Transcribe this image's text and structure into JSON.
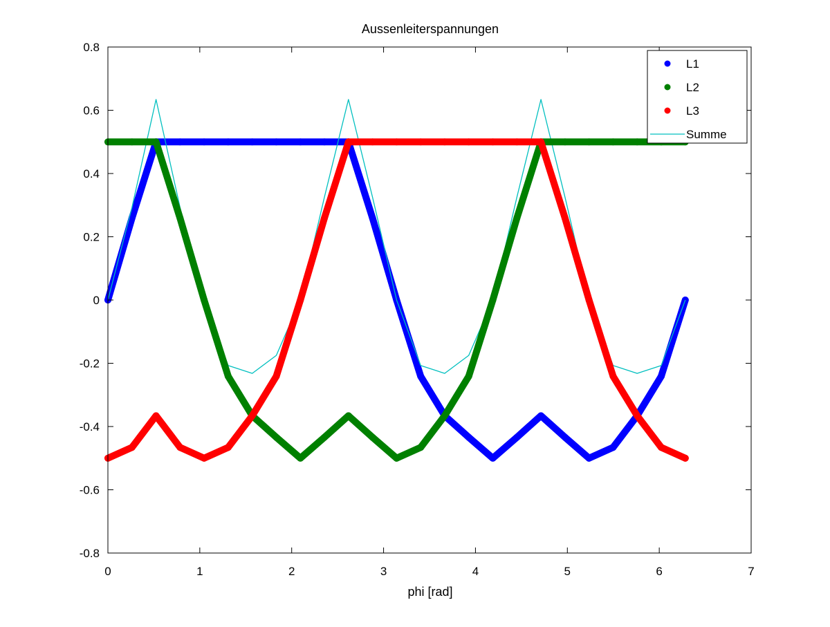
{
  "chart_data": {
    "type": "scatter",
    "title": "Aussenleiterspannungen",
    "xlabel": "phi [rad]",
    "ylabel": "",
    "xlim": [
      0,
      7
    ],
    "ylim": [
      -0.8,
      0.8
    ],
    "xticks": [
      0,
      1,
      2,
      3,
      4,
      5,
      6,
      7
    ],
    "xtick_labels": [
      "0",
      "1",
      "2",
      "3",
      "4",
      "5",
      "6",
      "7"
    ],
    "yticks": [
      -0.8,
      -0.6,
      -0.4,
      -0.2,
      0,
      0.2,
      0.4,
      0.6,
      0.8
    ],
    "ytick_labels": [
      "-0.8",
      "-0.6",
      "-0.4",
      "-0.2",
      "0",
      "0.2",
      "0.4",
      "0.6",
      "0.8"
    ],
    "grid": false,
    "legend_position": "top-right",
    "x": [
      0,
      0.2618,
      0.5236,
      0.7854,
      1.0472,
      1.309,
      1.5708,
      1.8326,
      2.0944,
      2.3562,
      2.618,
      2.8798,
      3.1416,
      3.4034,
      3.6652,
      3.927,
      4.1888,
      4.4506,
      4.7124,
      4.9742,
      5.236,
      5.4978,
      5.7596,
      6.0214,
      6.2832
    ],
    "series": [
      {
        "name": "L1",
        "color": "#0000ff",
        "style": "dots",
        "values": [
          0,
          0.259,
          0.5,
          0.5,
          0.5,
          0.5,
          0.5,
          0.5,
          0.5,
          0.5,
          0.5,
          0.259,
          0,
          -0.241,
          -0.366,
          -0.434,
          -0.5,
          -0.434,
          -0.366,
          -0.434,
          -0.5,
          -0.466,
          -0.366,
          -0.241,
          0
        ]
      },
      {
        "name": "L2",
        "color": "#008000",
        "style": "dots",
        "values": [
          0.5,
          0.5,
          0.5,
          0.259,
          0,
          -0.241,
          -0.366,
          -0.434,
          -0.5,
          -0.434,
          -0.366,
          -0.434,
          -0.5,
          -0.466,
          -0.366,
          -0.241,
          0,
          0.259,
          0.5,
          0.5,
          0.5,
          0.5,
          0.5,
          0.5,
          0.5
        ]
      },
      {
        "name": "L3",
        "color": "#ff0000",
        "style": "dots",
        "values": [
          -0.5,
          -0.466,
          -0.366,
          -0.466,
          -0.5,
          -0.466,
          -0.366,
          -0.241,
          0,
          0.259,
          0.5,
          0.5,
          0.5,
          0.5,
          0.5,
          0.5,
          0.5,
          0.5,
          0.5,
          0.259,
          0,
          -0.241,
          -0.366,
          -0.466,
          -0.5
        ]
      },
      {
        "name": "Summe",
        "color": "#00bfbf",
        "style": "line",
        "values": [
          0,
          0.293,
          0.634,
          0.293,
          0,
          -0.207,
          -0.232,
          -0.175,
          0,
          0.325,
          0.634,
          0.325,
          0,
          -0.207,
          -0.232,
          -0.175,
          0,
          0.325,
          0.634,
          0.325,
          0,
          -0.207,
          -0.232,
          -0.207,
          0
        ]
      }
    ]
  },
  "colors": {
    "background": "#ffffff",
    "axes": "#000000"
  }
}
